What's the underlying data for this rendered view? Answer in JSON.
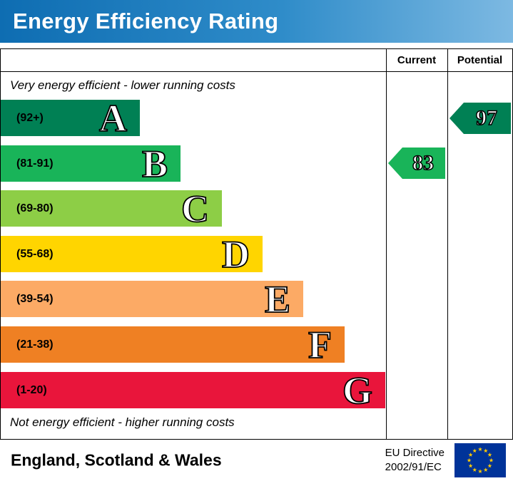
{
  "header": {
    "title": "Energy Efficiency Rating"
  },
  "columns": {
    "current_label": "Current",
    "potential_label": "Potential"
  },
  "captions": {
    "top": "Very energy efficient - lower running costs",
    "bottom": "Not energy efficient - higher running costs"
  },
  "bands": [
    {
      "letter": "A",
      "range_label": "(92+)",
      "color": "#008054"
    },
    {
      "letter": "B",
      "range_label": "(81-91)",
      "color": "#19b459"
    },
    {
      "letter": "C",
      "range_label": "(69-80)",
      "color": "#8dce46"
    },
    {
      "letter": "D",
      "range_label": "(55-68)",
      "color": "#ffd500"
    },
    {
      "letter": "E",
      "range_label": "(39-54)",
      "color": "#fcaa65"
    },
    {
      "letter": "F",
      "range_label": "(21-38)",
      "color": "#ef8023"
    },
    {
      "letter": "G",
      "range_label": "(1-20)",
      "color": "#e9153b"
    }
  ],
  "ratings": {
    "current": {
      "value": 83,
      "band": "B"
    },
    "potential": {
      "value": 97,
      "band": "A"
    }
  },
  "footer": {
    "region": "England, Scotland & Wales",
    "directive_line1": "EU Directive",
    "directive_line2": "2002/91/EC"
  },
  "icons": {
    "eu_flag": "eu-flag-icon"
  },
  "colors": {
    "header_blue": "#2f8cc9",
    "eu_flag_blue": "#003399",
    "eu_star_yellow": "#ffcc00"
  },
  "chart_data": {
    "type": "bar",
    "title": "Energy Efficiency Rating",
    "categories": [
      "A",
      "B",
      "C",
      "D",
      "E",
      "F",
      "G"
    ],
    "category_ranges": [
      "(92+)",
      "(81-91)",
      "(69-80)",
      "(55-68)",
      "(39-54)",
      "(21-38)",
      "(1-20)"
    ],
    "colors": [
      "#008054",
      "#19b459",
      "#8dce46",
      "#ffd500",
      "#fcaa65",
      "#ef8023",
      "#e9153b"
    ],
    "markers": [
      {
        "name": "Current",
        "value": 83,
        "band": "B"
      },
      {
        "name": "Potential",
        "value": 97,
        "band": "A"
      }
    ],
    "top_caption": "Very energy efficient - lower running costs",
    "bottom_caption": "Not energy efficient - higher running costs",
    "footer_region": "England, Scotland & Wales",
    "directive": "EU Directive 2002/91/EC",
    "legend_position": "none",
    "grid": false
  }
}
